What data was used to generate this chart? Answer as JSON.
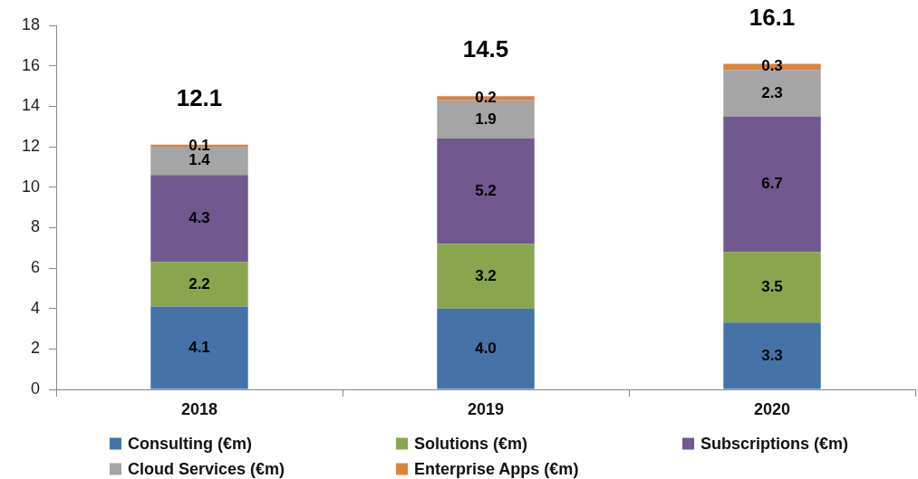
{
  "chart_data": {
    "type": "bar",
    "categories": [
      "2018",
      "2019",
      "2020"
    ],
    "stacked": true,
    "ylim": [
      0,
      18
    ],
    "yticks": [
      0,
      2,
      4,
      6,
      8,
      10,
      12,
      14,
      16,
      18
    ],
    "legend": "bottom",
    "series": [
      {
        "name": "Consulting (€m)",
        "color": "#4572a7",
        "values": [
          4.1,
          4.0,
          3.3
        ],
        "value_labels": [
          "4.1",
          "4.0",
          "3.3"
        ]
      },
      {
        "name": "Solutions (€m)",
        "color": "#89a54e",
        "values": [
          2.2,
          3.2,
          3.5
        ],
        "value_labels": [
          "2.2",
          "3.2",
          "3.5"
        ]
      },
      {
        "name": "Subscriptions (€m)",
        "color": "#71588f",
        "values": [
          4.3,
          5.2,
          6.7
        ],
        "value_labels": [
          "4.3",
          "5.2",
          "6.7"
        ]
      },
      {
        "name": "Cloud Services (€m)",
        "color": "#a5a5a5",
        "values": [
          1.4,
          1.9,
          2.3
        ],
        "value_labels": [
          "1.4",
          "1.9",
          "2.3"
        ]
      },
      {
        "name": "Enterprise Apps (€m)",
        "color": "#db843d",
        "values": [
          0.1,
          0.2,
          0.3
        ],
        "value_labels": [
          "0.1",
          "0.2",
          "0.3"
        ]
      }
    ],
    "totals": [
      "12.1",
      "14.5",
      "16.1"
    ]
  }
}
